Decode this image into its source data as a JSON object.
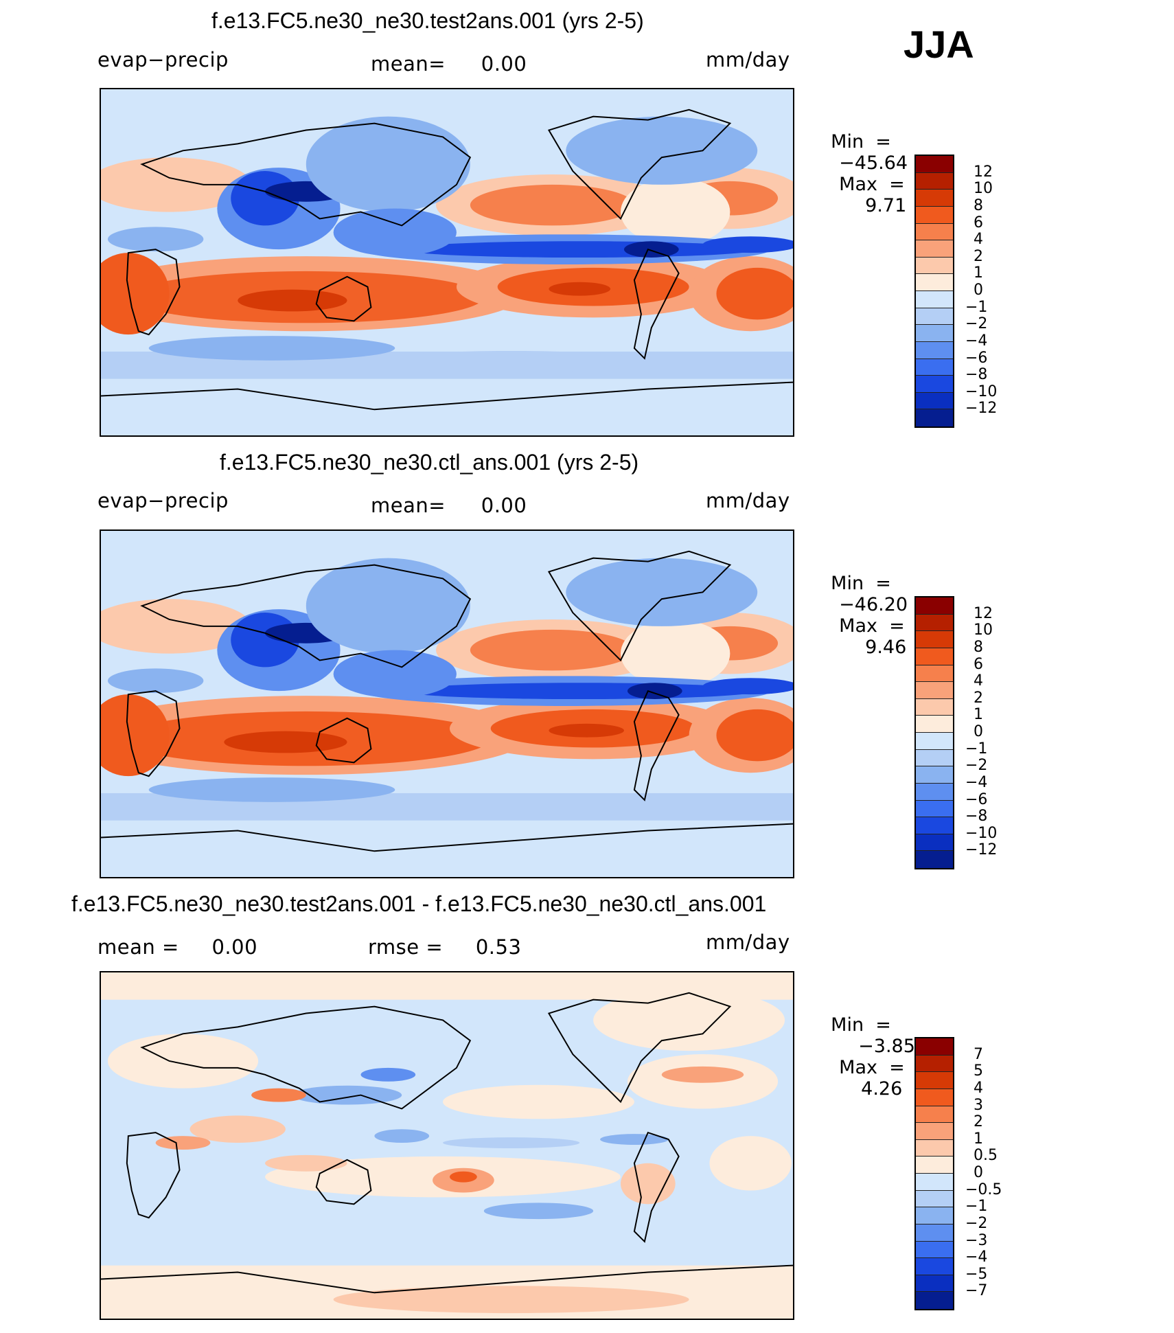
{
  "season": "JJA",
  "panels": [
    {
      "title": "f.e13.FC5.ne30_ne30.test2ans.001 (yrs 2-5)",
      "left_label": "evap−precip",
      "mid_label": "mean=",
      "mid_value": "0.00",
      "units": "mm/day",
      "min_label": "Min  =",
      "min_value": "−45.64",
      "max_label": "Max  =",
      "max_value": "9.71",
      "colorbar": {
        "labels": [
          "12",
          "10",
          "8",
          "6",
          "4",
          "2",
          "1",
          "0",
          "−1",
          "−2",
          "−4",
          "−6",
          "−8",
          "−10",
          "−12"
        ],
        "colors": [
          "#8a0000",
          "#b52000",
          "#d63a06",
          "#f05a1e",
          "#f6804c",
          "#f9a27a",
          "#fcc9ac",
          "#fdecdc",
          "#d2e6fb",
          "#b4cff5",
          "#8ab3f0",
          "#5e8ff0",
          "#3a6ef0",
          "#1a48e0",
          "#0a2fc0",
          "#051e90"
        ]
      }
    },
    {
      "title": "f.e13.FC5.ne30_ne30.ctl_ans.001 (yrs 2-5)",
      "left_label": "evap−precip",
      "mid_label": "mean=",
      "mid_value": "0.00",
      "units": "mm/day",
      "min_label": "Min  =",
      "min_value": "−46.20",
      "max_label": "Max  =",
      "max_value": "9.46",
      "colorbar": {
        "labels": [
          "12",
          "10",
          "8",
          "6",
          "4",
          "2",
          "1",
          "0",
          "−1",
          "−2",
          "−4",
          "−6",
          "−8",
          "−10",
          "−12"
        ],
        "colors": [
          "#8a0000",
          "#b52000",
          "#d63a06",
          "#f05a1e",
          "#f6804c",
          "#f9a27a",
          "#fcc9ac",
          "#fdecdc",
          "#d2e6fb",
          "#b4cff5",
          "#8ab3f0",
          "#5e8ff0",
          "#3a6ef0",
          "#1a48e0",
          "#0a2fc0",
          "#051e90"
        ]
      }
    },
    {
      "title": "f.e13.FC5.ne30_ne30.test2ans.001 - f.e13.FC5.ne30_ne30.ctl_ans.001",
      "left_label": "mean  =",
      "left_value": "0.00",
      "mid_label": "rmse  =",
      "mid_value": "0.53",
      "units": "mm/day",
      "min_label": "Min  =",
      "min_value": "−3.85",
      "max_label": "Max  =",
      "max_value": "4.26",
      "colorbar": {
        "labels": [
          "7",
          "5",
          "4",
          "3",
          "2",
          "1",
          "0.5",
          "0",
          "−0.5",
          "−1",
          "−2",
          "−3",
          "−4",
          "−5",
          "−7"
        ],
        "colors": [
          "#8a0000",
          "#b52000",
          "#d63a06",
          "#f05a1e",
          "#f6804c",
          "#f9a27a",
          "#fcc9ac",
          "#fdecdc",
          "#d2e6fb",
          "#b4cff5",
          "#8ab3f0",
          "#5e8ff0",
          "#3a6ef0",
          "#1a48e0",
          "#0a2fc0",
          "#051e90"
        ]
      }
    }
  ]
}
